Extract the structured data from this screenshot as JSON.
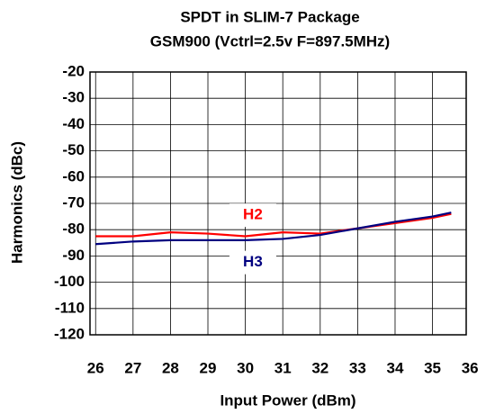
{
  "chart_data": {
    "type": "line",
    "title": "SPDT in SLIM-7 Package",
    "subtitle": "GSM900 (Vctrl=2.5v F=897.5MHz)",
    "x_label": "Input Power (dBm)",
    "y_label": "Harmonics (dBc)",
    "x": [
      26,
      27,
      28,
      29,
      30,
      31,
      32,
      33,
      34,
      35,
      35.5
    ],
    "series": [
      {
        "name": "H2",
        "color": "#ff0000",
        "values": [
          -82.5,
          -82.5,
          -81,
          -81.5,
          -82.5,
          -81,
          -81.5,
          -79.5,
          -77.5,
          -75.5,
          -74
        ]
      },
      {
        "name": "H3",
        "color": "#000080",
        "values": [
          -85.5,
          -84.5,
          -84,
          -84,
          -84,
          -83.5,
          -82,
          -79.5,
          -77,
          -75,
          -73.5
        ]
      }
    ],
    "xlim": [
      25.85,
      35.9
    ],
    "xticks": [
      26,
      27,
      28,
      29,
      30,
      31,
      32,
      33,
      34,
      35,
      36
    ],
    "ylim": [
      -120,
      -20
    ],
    "yticks": [
      -20,
      -30,
      -40,
      -50,
      -60,
      -70,
      -80,
      -90,
      -100,
      -110,
      -120
    ],
    "grid": true
  }
}
